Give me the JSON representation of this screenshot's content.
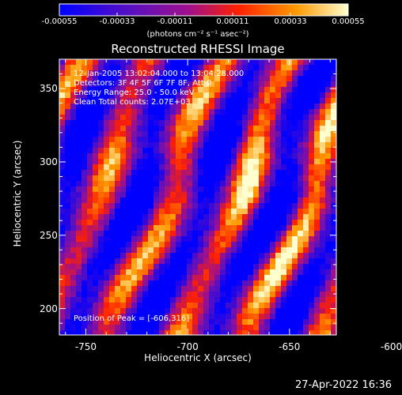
{
  "chart_data": {
    "type": "heatmap",
    "title": "Reconstructed RHESSI Image",
    "xlabel": "Heliocentric X (arcsec)",
    "ylabel": "Heliocentric Y (arcsec)",
    "xlim": [
      -763,
      -627
    ],
    "ylim": [
      182,
      370
    ],
    "x_ticks": [
      -750,
      -700,
      -650,
      -600
    ],
    "x_tick_labels": [
      "-750",
      "-700",
      "-650",
      "-600"
    ],
    "y_ticks": [
      200,
      250,
      300,
      350
    ],
    "y_tick_labels": [
      "200",
      "250",
      "300",
      "350"
    ],
    "colorbar": {
      "range": [
        -0.00055,
        0.00055
      ],
      "ticks": [
        -0.00055,
        -0.00033,
        -0.00011,
        0.00011,
        0.00033,
        0.00055
      ],
      "tick_labels": [
        "-0.00055",
        "-0.00033",
        "-0.00011",
        "0.00011",
        "0.00033",
        "0.00055"
      ],
      "units_label": "(photons cm⁻² s⁻¹ asec⁻²)",
      "colors": [
        "#0000ff",
        "#6a0dad",
        "#b01070",
        "#ff2a00",
        "#ff9900",
        "#ffffcc"
      ]
    },
    "annotations": [
      "12-Jan-2005 13:02:04.000 to 13:04:28.000",
      "Detectors: 3F 4F 5F 6F 7F 8F, Att 0",
      "Energy Range: 25.0 - 50.0 keV",
      "Clean     Total counts: 2.07E+03"
    ],
    "peak_label": "Position of Peak = [-606,316]",
    "peak_position": [
      -606,
      316
    ],
    "image_pattern": "diagonal stripes"
  },
  "footer_text": "27-Apr-2022 16:36"
}
